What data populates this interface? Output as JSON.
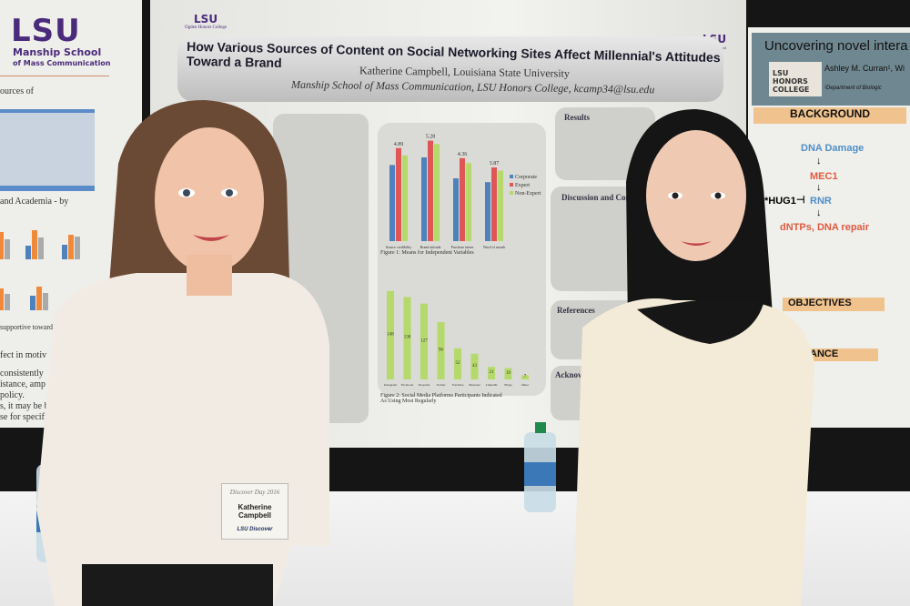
{
  "left_poster": {
    "logo": "LSU",
    "school": "Manship School",
    "school_sub": "of Mass Communication",
    "fragments": [
      "ources of",
      "and Academia - by",
      "supportive toward a",
      "fect in motiv",
      "consistently",
      "istance, amp",
      "policy.",
      "s, it may be b",
      "se for specific"
    ]
  },
  "center_poster": {
    "logo_left": "LSU",
    "logo_left_sub": "Ogden Honors College",
    "logo_right": "LSU",
    "logo_right_sub": "Manship School",
    "title": "How Various Sources of Content on Social Networking Sites Affect Millennial's Attitudes Toward a Brand",
    "author": "Katherine Campbell, Louisiana State University",
    "affiliation": "Manship School of Mass Communication, LSU Honors College, kcamp34@lsu.edu",
    "sections": [
      "Results",
      "Discussion and Concl",
      "References",
      "Acknowl"
    ]
  },
  "chart_data": [
    {
      "type": "bar",
      "title": "Figure 1: Means for Independent Variables",
      "categories": [
        "Source credibility",
        "Brand attitude",
        "Purchase intent",
        "Word of mouth"
      ],
      "series": [
        {
          "name": "Corporate",
          "values": [
            4.0,
            4.4,
            3.3,
            3.1
          ]
        },
        {
          "name": "Expert",
          "values": [
            4.89,
            5.28,
            4.36,
            3.87
          ]
        },
        {
          "name": "Non-Expert",
          "values": [
            4.5,
            5.1,
            4.1,
            3.7
          ]
        }
      ],
      "data_labels": [
        "4.89",
        "5.28",
        "4.36",
        "3.87"
      ],
      "colors": [
        "#4f81bd",
        "#e05555",
        "#b5d96a"
      ],
      "legend": "right",
      "ylim": [
        0,
        5.5
      ]
    },
    {
      "type": "bar",
      "title": "Figure 2: Social Media Platforms Participants Indicated As Using Most Regularly",
      "categories": [
        "Instagram",
        "Facebook",
        "Snapchat",
        "Twitter",
        "YouTube",
        "Pinterest",
        "LinkedIn",
        "Blogs",
        "Other"
      ],
      "values": [
        148,
        138,
        127,
        96,
        52,
        43,
        21,
        19,
        7
      ],
      "color": "#b5d96a",
      "ylim": [
        0,
        160
      ]
    }
  ],
  "right_poster": {
    "title": "Uncovering novel intera",
    "author": "Ashley M. Curran¹, Wi",
    "dept": "¹Department of Biologic",
    "logo": "LSU HONORS COLLEGE",
    "background_head": "BACKGROUND",
    "flow": [
      "DNA Damage",
      "MEC1",
      "RNR",
      "dNTPs, DNA repair",
      "*HUG1"
    ],
    "objectives_head": "OBJECTIVES",
    "significance_head": "ANCE"
  },
  "badge": {
    "event": "Discover Day 2016",
    "name": "Katherine Campbell",
    "logo": "LSU Discover"
  }
}
